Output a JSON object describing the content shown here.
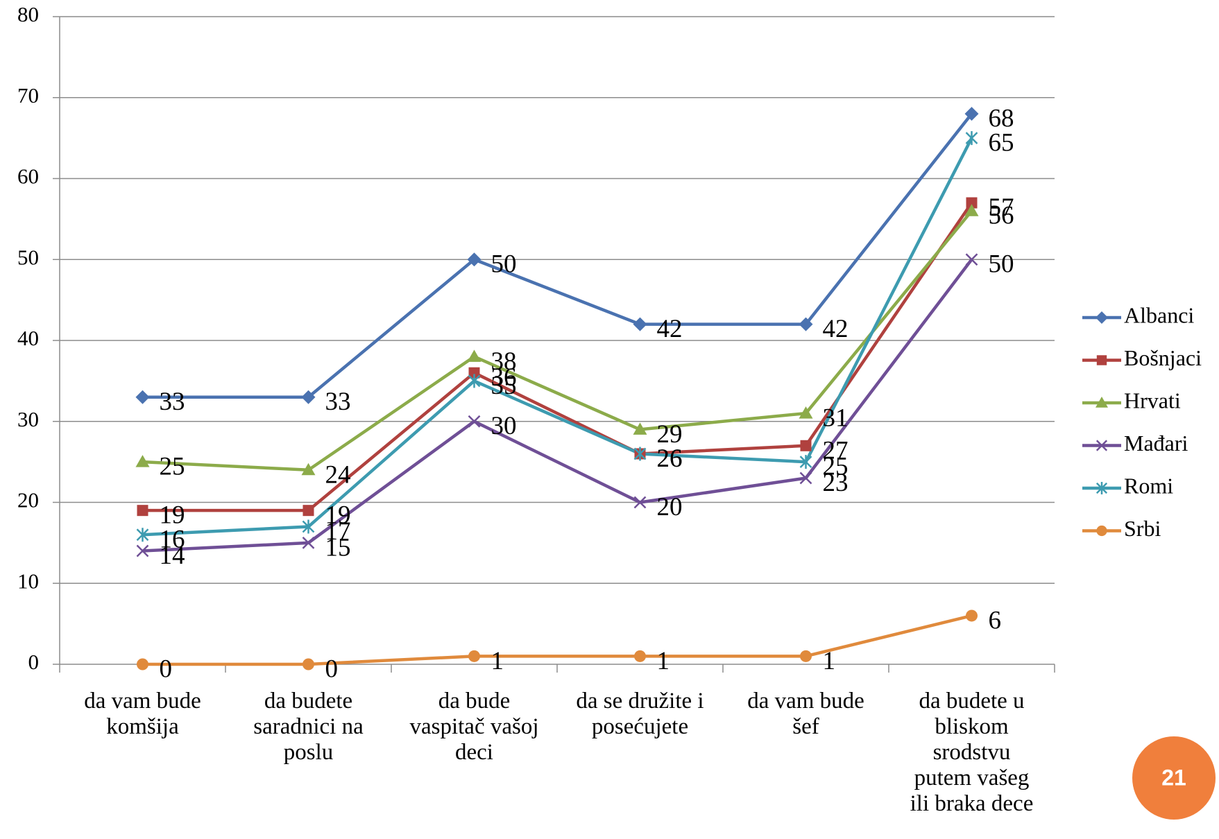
{
  "chart_data": {
    "type": "line",
    "categories": [
      [
        "da vam bude",
        "komšija"
      ],
      [
        "da budete",
        "saradnici na",
        "poslu"
      ],
      [
        "da bude",
        "vaspitač vašoj",
        "deci"
      ],
      [
        "da se družite i",
        "posećujete"
      ],
      [
        "da vam bude",
        "šef"
      ],
      [
        "da budete u",
        "bliskom",
        "srodstvu",
        "putem  vašeg",
        "ili braka dece"
      ]
    ],
    "series": [
      {
        "name": "Albanci",
        "color": "#4a72b0",
        "marker": "diamond",
        "values": [
          33,
          33,
          50,
          42,
          42,
          68
        ]
      },
      {
        "name": "Bošnjaci",
        "color": "#b0413e",
        "marker": "square",
        "values": [
          19,
          19,
          36,
          26,
          27,
          57
        ]
      },
      {
        "name": "Hrvati",
        "color": "#8cab4a",
        "marker": "triangle",
        "values": [
          25,
          24,
          38,
          29,
          31,
          56
        ]
      },
      {
        "name": "Mađari",
        "color": "#6f4f96",
        "marker": "x",
        "values": [
          14,
          15,
          30,
          20,
          23,
          50
        ]
      },
      {
        "name": "Romi",
        "color": "#3d9bb0",
        "marker": "asterisk",
        "values": [
          16,
          17,
          35,
          26,
          25,
          65
        ]
      },
      {
        "name": "Srbi",
        "color": "#e08a3c",
        "marker": "circle",
        "values": [
          0,
          0,
          1,
          1,
          1,
          6
        ]
      }
    ],
    "ylim": [
      0,
      80
    ],
    "yticks": [
      0,
      10,
      20,
      30,
      40,
      50,
      60,
      70,
      80
    ],
    "grid": true,
    "legend": "right"
  },
  "page_number": "21"
}
